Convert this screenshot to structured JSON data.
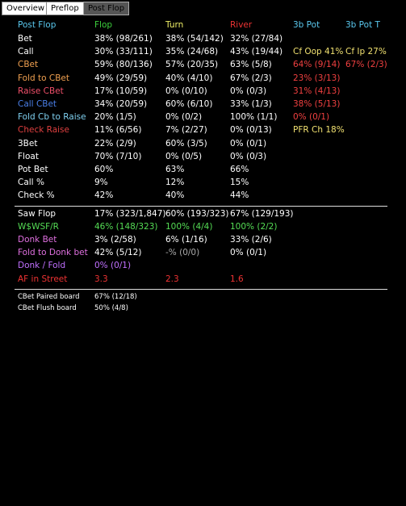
{
  "tabs": {
    "items": [
      "Overview",
      "Preflop",
      "Post Flop"
    ],
    "active": 2
  },
  "header": [
    {
      "text": "Post Flop",
      "color": "#5ac8ee"
    },
    {
      "text": "Flop",
      "color": "#3ccf3c"
    },
    {
      "text": "Turn",
      "color": "#eeee66"
    },
    {
      "text": "River",
      "color": "#ee3333"
    },
    {
      "text": "3b Pot",
      "color": "#5ac8ee"
    },
    {
      "text": "3b Pot T",
      "color": "#5ac8ee"
    }
  ],
  "sections": [
    {
      "rows": [
        {
          "label": "Bet",
          "color": "#ffffff",
          "cells": [
            {
              "text": "38% (98/261)"
            },
            {
              "text": "38% (54/142)"
            },
            {
              "text": "32% (27/84)"
            }
          ]
        },
        {
          "label": "Call",
          "color": "#ffffff",
          "cells": [
            {
              "text": "30% (33/111)"
            },
            {
              "text": "35% (24/68)"
            },
            {
              "text": "43% (19/44)"
            },
            {
              "text": "Cf Oop 41%",
              "color": "#f0e070"
            },
            {
              "text": "Cf Ip 27%",
              "color": "#f0e070"
            }
          ]
        },
        {
          "label": "CBet",
          "color": "#f0a050",
          "cells": [
            {
              "text": "59% (80/136)"
            },
            {
              "text": "57% (20/35)"
            },
            {
              "text": "63% (5/8)"
            },
            {
              "text": "64% (9/14)",
              "color": "#f04040"
            },
            {
              "text": "67% (2/3)",
              "color": "#f04040"
            }
          ]
        },
        {
          "label": "Fold to CBet",
          "color": "#f0a050",
          "cells": [
            {
              "text": "49% (29/59)"
            },
            {
              "text": "40% (4/10)"
            },
            {
              "text": "67% (2/3)"
            },
            {
              "text": "23% (3/13)",
              "color": "#f04040"
            }
          ]
        },
        {
          "label": "Raise CBet",
          "color": "#f0506a",
          "cells": [
            {
              "text": "17% (10/59)"
            },
            {
              "text": "0% (0/10)"
            },
            {
              "text": "0% (0/3)"
            },
            {
              "text": "31% (4/13)",
              "color": "#f04040"
            }
          ]
        },
        {
          "label": "Call CBet",
          "color": "#4a7fe8",
          "cells": [
            {
              "text": "34% (20/59)"
            },
            {
              "text": "60% (6/10)"
            },
            {
              "text": "33% (1/3)"
            },
            {
              "text": "38% (5/13)",
              "color": "#f04040"
            }
          ]
        },
        {
          "label": "Fold Cb to Raise",
          "color": "#7fd0f0",
          "cells": [
            {
              "text": "20% (1/5)"
            },
            {
              "text": "0% (0/2)"
            },
            {
              "text": "100% (1/1)"
            },
            {
              "text": "0% (0/1)",
              "color": "#f04040"
            }
          ]
        },
        {
          "label": "Check Raise",
          "color": "#e04040",
          "cells": [
            {
              "text": "11% (6/56)"
            },
            {
              "text": "7% (2/27)"
            },
            {
              "text": "0% (0/13)"
            },
            {
              "text": "PFR Ch 18%",
              "color": "#f0e070"
            }
          ]
        },
        {
          "label": "3Bet",
          "color": "#ffffff",
          "cells": [
            {
              "text": "22% (2/9)"
            },
            {
              "text": "60% (3/5)"
            },
            {
              "text": "0% (0/1)"
            }
          ]
        },
        {
          "label": "Float",
          "color": "#ffffff",
          "cells": [
            {
              "text": "70% (7/10)"
            },
            {
              "text": "0% (0/5)"
            },
            {
              "text": "0% (0/3)"
            }
          ]
        },
        {
          "label": "Pot Bet",
          "color": "#ffffff",
          "cells": [
            {
              "text": "60%"
            },
            {
              "text": "63%"
            },
            {
              "text": "66%"
            }
          ]
        },
        {
          "label": "Call %",
          "color": "#ffffff",
          "cells": [
            {
              "text": "9%"
            },
            {
              "text": "12%"
            },
            {
              "text": "15%"
            }
          ]
        },
        {
          "label": "Check %",
          "color": "#ffffff",
          "cells": [
            {
              "text": "42%"
            },
            {
              "text": "40%"
            },
            {
              "text": "44%"
            }
          ]
        }
      ]
    },
    {
      "rows": [
        {
          "label": "Saw Flop",
          "color": "#ffffff",
          "cells": [
            {
              "text": "17% (323/1,847)"
            },
            {
              "text": "60% (193/323)"
            },
            {
              "text": "67% (129/193)"
            }
          ]
        },
        {
          "label": "W$WSF/R",
          "color": "#55dd55",
          "cells": [
            {
              "text": "46% (148/323)",
              "color": "#55dd55"
            },
            {
              "text": "100% (4/4)",
              "color": "#55dd55"
            },
            {
              "text": "100% (2/2)",
              "color": "#55dd55"
            }
          ]
        },
        {
          "label": "Donk Bet",
          "color": "#e070e0",
          "cells": [
            {
              "text": "3% (2/58)"
            },
            {
              "text": "6% (1/16)"
            },
            {
              "text": "33% (2/6)"
            }
          ]
        },
        {
          "label": "Fold to Donk bet",
          "color": "#e070e0",
          "cells": [
            {
              "text": "42% (5/12)"
            },
            {
              "text": "-% (0/0)",
              "color": "#aaaaaa"
            },
            {
              "text": "0% (0/1)"
            }
          ]
        },
        {
          "label": "Donk / Fold",
          "color": "#c070ff",
          "cells": [
            {
              "text": "0% (0/1)",
              "color": "#c070ff"
            }
          ]
        },
        {
          "label": "AF in Street",
          "color": "#ee3333",
          "cells": [
            {
              "text": "3.3",
              "color": "#ee3333"
            },
            {
              "text": "2.3",
              "color": "#ee3333"
            },
            {
              "text": "1.6",
              "color": "#ee3333"
            }
          ]
        }
      ]
    },
    {
      "small": true,
      "rows": [
        {
          "label": "CBet Paired board",
          "color": "#ffffff",
          "cells": [
            {
              "text": "67% (12/18)"
            }
          ]
        },
        {
          "label": "CBet Flush board",
          "color": "#ffffff",
          "cells": [
            {
              "text": "50% (4/8)"
            }
          ]
        }
      ]
    }
  ]
}
